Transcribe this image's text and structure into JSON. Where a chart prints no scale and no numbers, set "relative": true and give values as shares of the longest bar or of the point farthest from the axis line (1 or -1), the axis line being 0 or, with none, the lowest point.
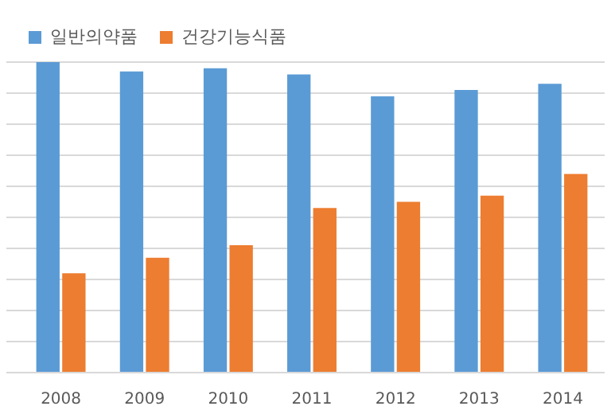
{
  "chart_data": {
    "type": "bar",
    "categories": [
      "2008",
      "2009",
      "2010",
      "2011",
      "2012",
      "2013",
      "2014"
    ],
    "relative": true,
    "legend": "top left",
    "grid": "y",
    "series": [
      {
        "name": "일반의약품",
        "color": "#5b9bd5",
        "values": [
          1,
          0.97,
          0.98,
          0.96,
          0.89,
          0.91,
          0.93
        ]
      },
      {
        "name": "건강기능식품",
        "color": "#ed7d31",
        "values": [
          0.32,
          0.37,
          0.41,
          0.53,
          0.55,
          0.57,
          0.64
        ]
      }
    ]
  }
}
